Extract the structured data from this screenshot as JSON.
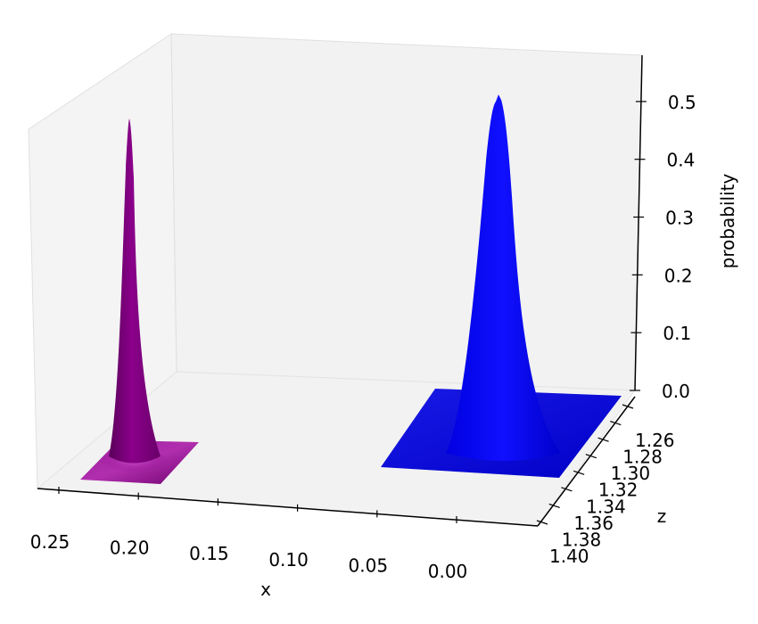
{
  "chart_data": {
    "type": "surface3d",
    "title": "",
    "xlabel": "x",
    "ylabel": "z",
    "zlabel": "probability",
    "x_ticks": [
      "0.25",
      "0.20",
      "0.15",
      "0.10",
      "0.05",
      "0.00"
    ],
    "y_ticks": [
      "1.26",
      "1.28",
      "1.30",
      "1.32",
      "1.34",
      "1.36",
      "1.38",
      "1.40"
    ],
    "z_ticks": [
      "0.0",
      "0.1",
      "0.2",
      "0.3",
      "0.4",
      "0.5"
    ],
    "xlim": [
      0.0,
      0.27
    ],
    "ylim": [
      1.25,
      1.4
    ],
    "zlim": [
      0.0,
      0.58
    ],
    "series": [
      {
        "color": "#800080",
        "peak_x": 0.205,
        "peak_z": 0.48
      },
      {
        "color": "#0000ff",
        "peak_x": 0.0,
        "peak_z": 0.53
      }
    ],
    "grid": false
  }
}
